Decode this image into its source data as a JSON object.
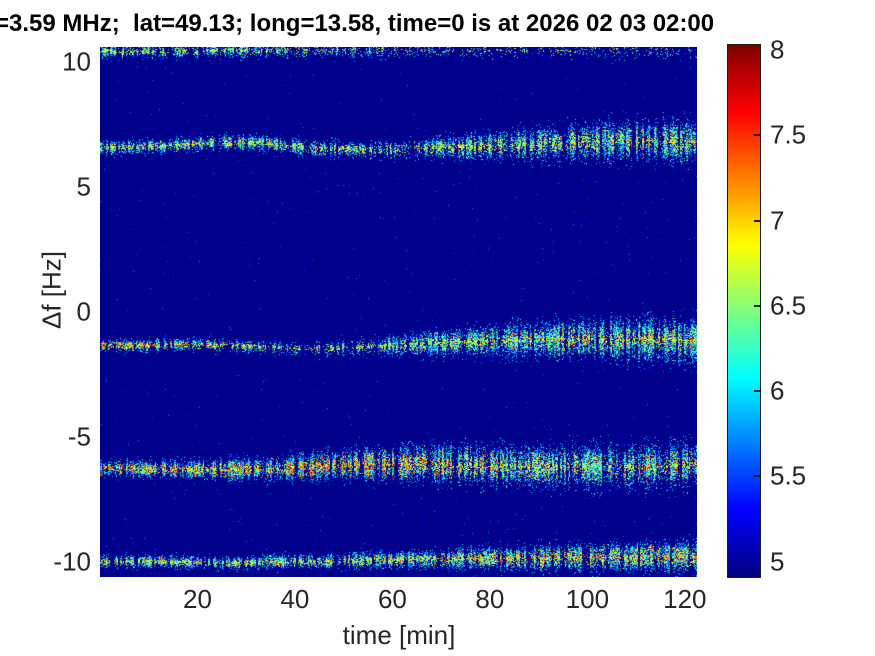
{
  "chart_data": {
    "type": "heatmap",
    "subtype": "doppler-spectrogram",
    "title": "=3.59 MHz;  lat=49.13; long=13.58, time=0 is at 2026 02 03 02:00",
    "xlabel": "time [min]",
    "ylabel": "Δf [Hz]",
    "xlim": [
      0,
      122.5
    ],
    "ylim": [
      -10.6,
      10.6
    ],
    "xticks": [
      20,
      40,
      60,
      80,
      100,
      120
    ],
    "yticks": [
      10,
      5,
      0,
      -5,
      -10
    ],
    "grid": false,
    "legend": null,
    "colormap": "jet",
    "background_value": 4.95,
    "colorbar": {
      "position": "right",
      "range": [
        4.91,
        8.03
      ],
      "ticks": [
        5,
        5.5,
        6,
        6.5,
        7,
        7.5,
        8
      ]
    },
    "bands": [
      {
        "name": "trace-plus10.5Hz",
        "df": [
          [
            0,
            10.45
          ],
          [
            60,
            10.48
          ],
          [
            122,
            10.5
          ]
        ],
        "sigma": [
          [
            0,
            0.14
          ],
          [
            122,
            0.18
          ]
        ],
        "amp": [
          [
            0,
            0.5
          ],
          [
            25,
            0.42
          ],
          [
            50,
            0.3
          ],
          [
            70,
            0.18
          ],
          [
            122,
            0.12
          ]
        ],
        "hot": [
          [
            0,
            0
          ],
          [
            122,
            0
          ]
        ]
      },
      {
        "name": "trace-plus6.6Hz",
        "df": [
          [
            0,
            6.6
          ],
          [
            12,
            6.63
          ],
          [
            25,
            6.82
          ],
          [
            33,
            6.8
          ],
          [
            42,
            6.58
          ],
          [
            55,
            6.5
          ],
          [
            68,
            6.58
          ],
          [
            80,
            6.65
          ],
          [
            95,
            6.8
          ],
          [
            110,
            6.88
          ],
          [
            122,
            6.82
          ]
        ],
        "sigma": [
          [
            0,
            0.13
          ],
          [
            30,
            0.15
          ],
          [
            55,
            0.17
          ],
          [
            70,
            0.22
          ],
          [
            85,
            0.3
          ],
          [
            100,
            0.38
          ],
          [
            122,
            0.42
          ]
        ],
        "amp": [
          [
            0,
            0.8
          ],
          [
            25,
            0.85
          ],
          [
            45,
            0.6
          ],
          [
            60,
            0.55
          ],
          [
            72,
            0.65
          ],
          [
            85,
            0.75
          ],
          [
            100,
            0.8
          ],
          [
            122,
            0.85
          ]
        ],
        "hot": [
          [
            0,
            0.1
          ],
          [
            20,
            0.14
          ],
          [
            35,
            0.08
          ],
          [
            55,
            0.04
          ],
          [
            75,
            0.06
          ],
          [
            95,
            0.1
          ],
          [
            122,
            0.09
          ]
        ]
      },
      {
        "name": "trace-minus1.3Hz",
        "df": [
          [
            0,
            -1.32
          ],
          [
            20,
            -1.28
          ],
          [
            30,
            -1.35
          ],
          [
            42,
            -1.45
          ],
          [
            52,
            -1.42
          ],
          [
            62,
            -1.3
          ],
          [
            75,
            -1.18
          ],
          [
            90,
            -1.1
          ],
          [
            105,
            -1.08
          ],
          [
            122,
            -1.12
          ]
        ],
        "sigma": [
          [
            0,
            0.12
          ],
          [
            35,
            0.12
          ],
          [
            55,
            0.16
          ],
          [
            70,
            0.25
          ],
          [
            85,
            0.33
          ],
          [
            100,
            0.4
          ],
          [
            122,
            0.44
          ]
        ],
        "amp": [
          [
            0,
            0.9
          ],
          [
            18,
            0.85
          ],
          [
            30,
            0.55
          ],
          [
            42,
            0.35
          ],
          [
            52,
            0.45
          ],
          [
            62,
            0.6
          ],
          [
            75,
            0.75
          ],
          [
            90,
            0.85
          ],
          [
            122,
            0.88
          ]
        ],
        "hot": [
          [
            0,
            0.32
          ],
          [
            15,
            0.28
          ],
          [
            28,
            0.12
          ],
          [
            45,
            0.03
          ],
          [
            60,
            0.06
          ],
          [
            80,
            0.1
          ],
          [
            100,
            0.12
          ],
          [
            122,
            0.12
          ]
        ]
      },
      {
        "name": "trace-minus6.2Hz",
        "df": [
          [
            0,
            -6.24
          ],
          [
            20,
            -6.3
          ],
          [
            38,
            -6.22
          ],
          [
            52,
            -6.1
          ],
          [
            65,
            -6.05
          ],
          [
            80,
            -6.12
          ],
          [
            95,
            -6.18
          ],
          [
            110,
            -6.15
          ],
          [
            122,
            -6.1
          ]
        ],
        "sigma": [
          [
            0,
            0.15
          ],
          [
            25,
            0.2
          ],
          [
            45,
            0.28
          ],
          [
            60,
            0.33
          ],
          [
            75,
            0.38
          ],
          [
            95,
            0.42
          ],
          [
            122,
            0.45
          ]
        ],
        "amp": [
          [
            0,
            0.95
          ],
          [
            30,
            0.95
          ],
          [
            50,
            1.0
          ],
          [
            65,
            1.0
          ],
          [
            78,
            0.85
          ],
          [
            90,
            0.65
          ],
          [
            105,
            0.6
          ],
          [
            122,
            0.65
          ]
        ],
        "hot": [
          [
            0,
            0.3
          ],
          [
            25,
            0.28
          ],
          [
            45,
            0.33
          ],
          [
            60,
            0.35
          ],
          [
            72,
            0.28
          ],
          [
            85,
            0.12
          ],
          [
            100,
            0.1
          ],
          [
            122,
            0.12
          ]
        ]
      },
      {
        "name": "trace-minus9.9Hz",
        "df": [
          [
            0,
            -9.95
          ],
          [
            25,
            -10.0
          ],
          [
            45,
            -9.95
          ],
          [
            60,
            -9.88
          ],
          [
            80,
            -9.85
          ],
          [
            100,
            -9.8
          ],
          [
            122,
            -9.75
          ]
        ],
        "sigma": [
          [
            0,
            0.12
          ],
          [
            40,
            0.14
          ],
          [
            65,
            0.18
          ],
          [
            85,
            0.24
          ],
          [
            105,
            0.28
          ],
          [
            122,
            0.3
          ]
        ],
        "amp": [
          [
            0,
            0.8
          ],
          [
            30,
            0.72
          ],
          [
            55,
            0.78
          ],
          [
            75,
            0.85
          ],
          [
            95,
            0.88
          ],
          [
            122,
            0.9
          ]
        ],
        "hot": [
          [
            0,
            0.12
          ],
          [
            30,
            0.08
          ],
          [
            55,
            0.12
          ],
          [
            75,
            0.16
          ],
          [
            95,
            0.18
          ],
          [
            122,
            0.2
          ]
        ]
      }
    ]
  }
}
